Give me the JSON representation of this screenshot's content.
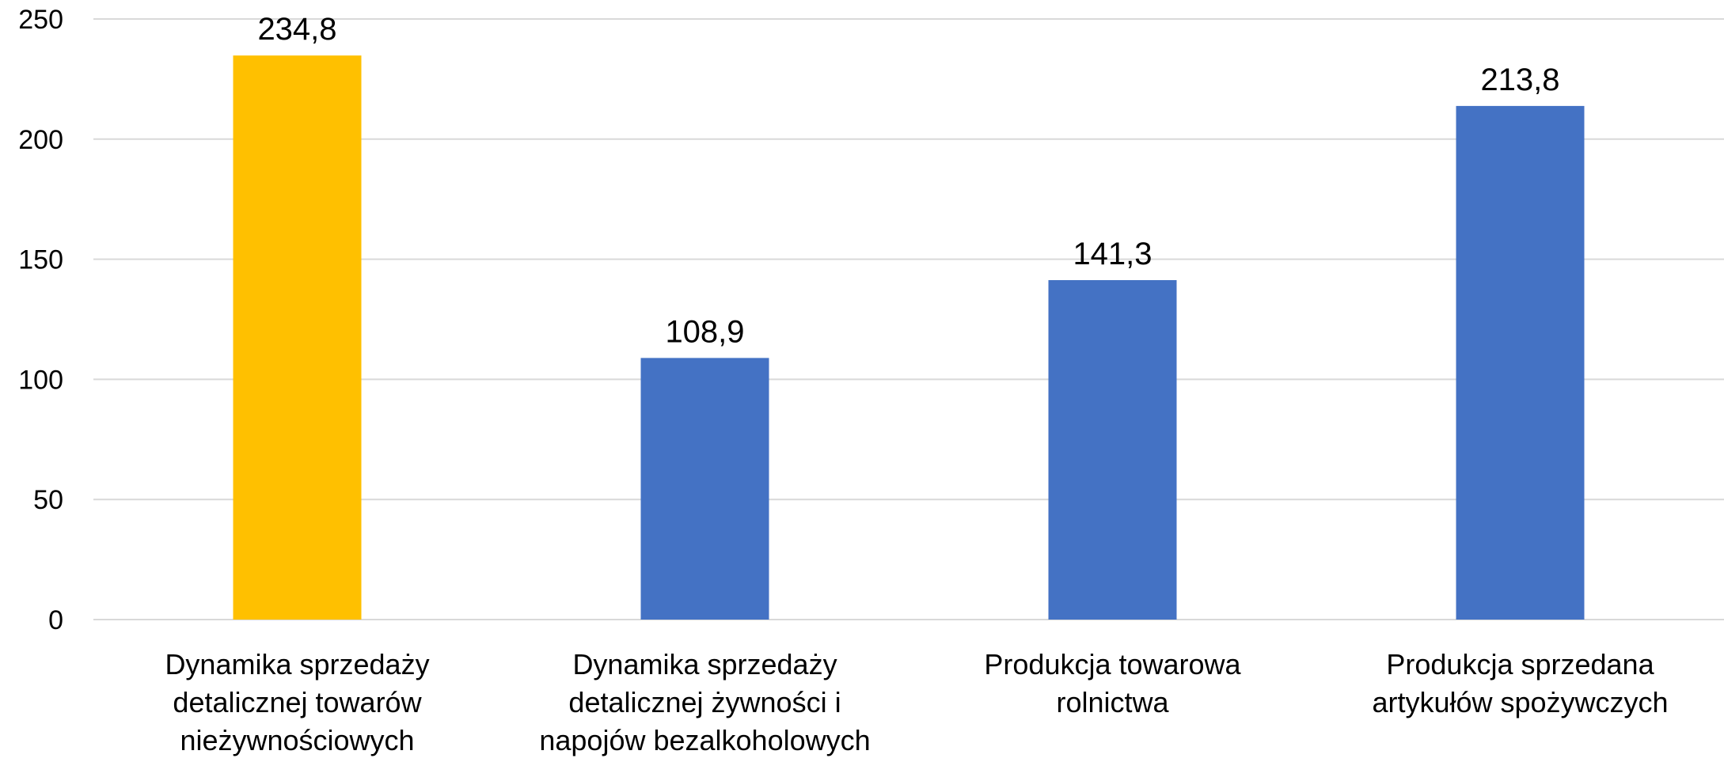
{
  "chart_data": {
    "type": "bar",
    "title": "",
    "xlabel": "",
    "ylabel": "",
    "ylim": [
      0,
      250
    ],
    "yticks": [
      0,
      50,
      100,
      150,
      200,
      250
    ],
    "grid": true,
    "legend": "none",
    "categories": [
      [
        "Dynamika sprzedaży",
        "detalicznej towarów",
        "nieżywnościowych"
      ],
      [
        "Dynamika sprzedaży",
        "detalicznej żywności i",
        "napojów bezalkoholowych"
      ],
      [
        "Produkcja towarowa",
        "rolnictwa"
      ],
      [
        "Produkcja sprzedana",
        "artykułów spożywczych"
      ]
    ],
    "values": [
      234.8,
      108.9,
      141.3,
      213.8
    ],
    "value_labels": [
      "234,8",
      "108,9",
      "141,3",
      "213,8"
    ],
    "colors": [
      "#ffc000",
      "#4472c4",
      "#4472c4",
      "#4472c4"
    ]
  }
}
